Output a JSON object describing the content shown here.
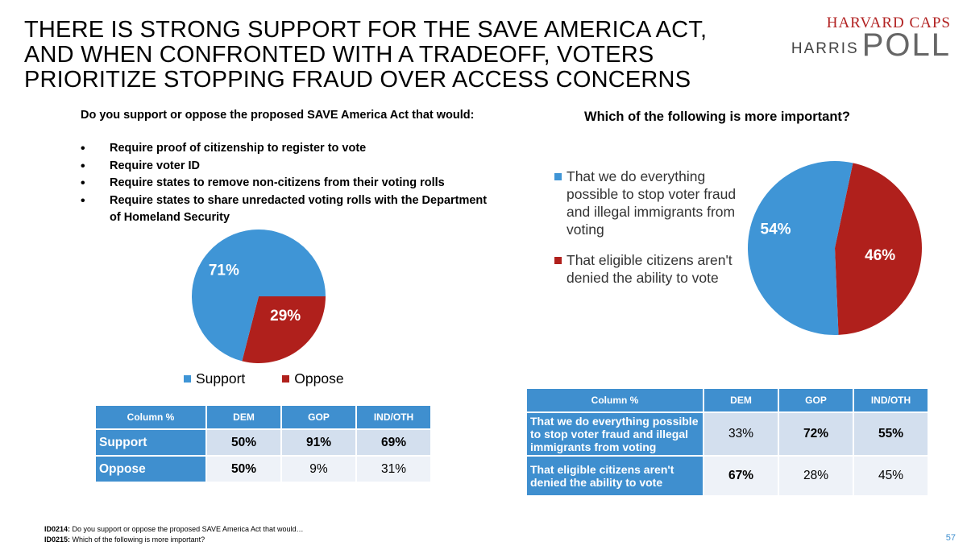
{
  "title": "THERE IS STRONG SUPPORT FOR THE SAVE AMERICA ACT, AND WHEN CONFRONTED WITH A TRADEOFF, VOTERS PRIORITIZE STOPPING FRAUD OVER ACCESS CONCERNS",
  "logo": {
    "line1": "HARVARD CAPS",
    "line2": "HARRIS",
    "line3": "POLL"
  },
  "left": {
    "question": "Do you support or oppose the proposed SAVE America Act that would:",
    "bullets": [
      "Require proof of citizenship to register to vote",
      "Require voter ID",
      "Require states to remove non-citizens from their voting rolls",
      "Require states to share unredacted voting rolls with the Department of Homeland Security"
    ],
    "legend": [
      "Support",
      "Oppose"
    ],
    "table": {
      "headers": [
        "Column %",
        "DEM",
        "GOP",
        "IND/OTH"
      ],
      "rows": [
        {
          "label": "Support",
          "values": [
            "50%",
            "91%",
            "69%"
          ]
        },
        {
          "label": "Oppose",
          "values": [
            "50%",
            "9%",
            "31%"
          ]
        }
      ]
    }
  },
  "right": {
    "question": "Which of the following is more important?",
    "legend": [
      "That we do everything possible to stop voter fraud and illegal immigrants from voting",
      "That eligible citizens aren't denied the ability to vote"
    ],
    "table": {
      "headers": [
        "Column %",
        "DEM",
        "GOP",
        "IND/OTH"
      ],
      "rows": [
        {
          "label": "That we do everything possible to stop voter fraud and illegal immigrants from voting",
          "values": [
            "33%",
            "72%",
            "55%"
          ]
        },
        {
          "label": "That eligible citizens aren't denied the ability to vote",
          "values": [
            "67%",
            "28%",
            "45%"
          ]
        }
      ]
    }
  },
  "chart_data": [
    {
      "type": "pie",
      "title": "Do you support or oppose the proposed SAVE America Act",
      "categories": [
        "Support",
        "Oppose"
      ],
      "values": [
        71,
        29
      ],
      "labels": [
        "71%",
        "29%"
      ],
      "colors": [
        "#3f95d6",
        "#b0201c"
      ]
    },
    {
      "type": "pie",
      "title": "Which of the following is more important?",
      "categories": [
        "That we do everything possible to stop voter fraud and illegal immigrants from voting",
        "That eligible citizens aren't denied the ability to vote"
      ],
      "values": [
        54,
        46
      ],
      "labels": [
        "54%",
        "46%"
      ],
      "colors": [
        "#3f95d6",
        "#b0201c"
      ]
    }
  ],
  "footnotes": [
    {
      "id": "ID0214:",
      "text": " Do you support or oppose the proposed SAVE America Act that would…"
    },
    {
      "id": "ID0215:",
      "text": " Which of the following is more important?"
    }
  ],
  "page_number": "57"
}
